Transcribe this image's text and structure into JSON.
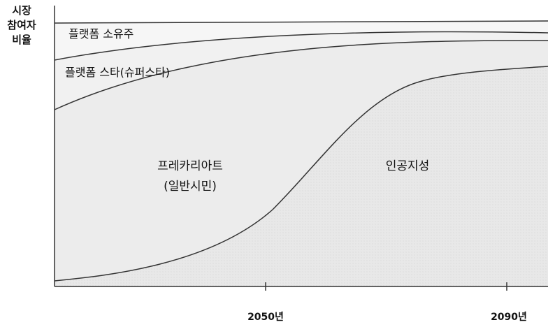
{
  "diagram": {
    "y_axis_title_lines": [
      "시장",
      "참여자",
      "비율"
    ],
    "x_ticks": [
      "2050년",
      "2090년"
    ],
    "regions": {
      "owner": "플랫폼 소유주",
      "star": "플랫폼 스타(슈퍼스타)",
      "precariat_line1": "프레카리아트",
      "precariat_line2": "(일반시민)",
      "ai": "인공지성"
    },
    "colors": {
      "line": "#333333",
      "fill_top": "#f6f6f6",
      "fill_mid": "#eeeeee",
      "fill_ai": "#e6e6e6"
    }
  }
}
